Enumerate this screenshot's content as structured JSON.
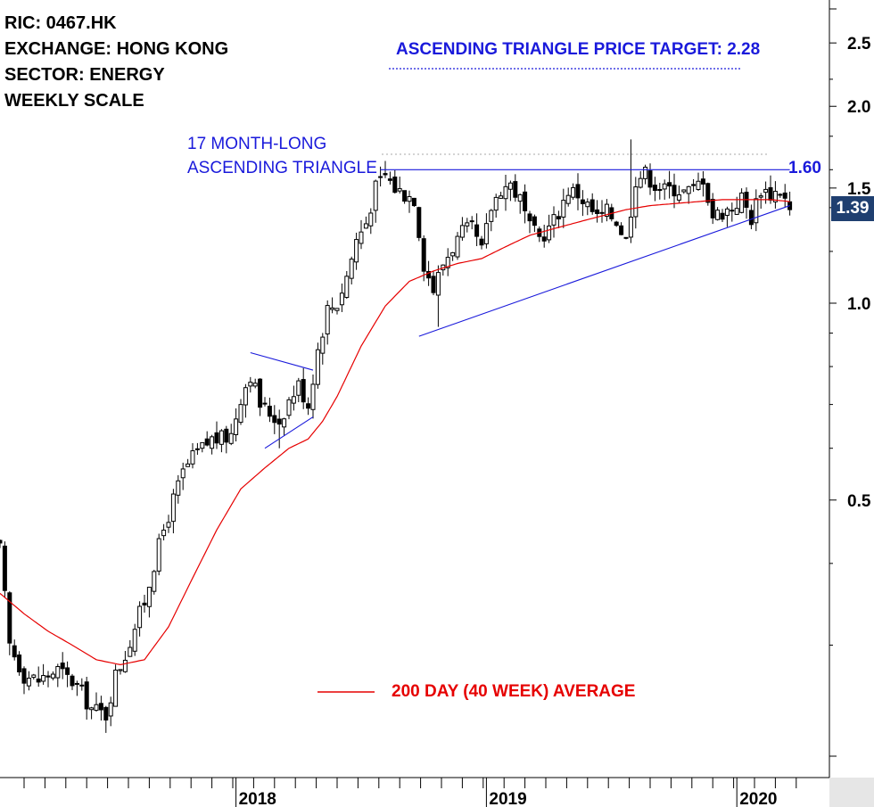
{
  "info": {
    "ric": "RIC: 0467.HK",
    "exchange": "EXCHANGE: HONG KONG",
    "sector": "SECTOR: ENERGY",
    "scale": "WEEKLY SCALE"
  },
  "annotations": {
    "target": "ASCENDING TRIANGLE PRICE TARGET: 2.28",
    "pattern_line1": "17 MONTH-LONG",
    "pattern_line2": "ASCENDING TRIANGLE",
    "resistance_label": "1.60",
    "last_price_label": "1.39",
    "legend_label": "200 DAY (40 WEEK) AVERAGE"
  },
  "colors": {
    "candle": "#000000",
    "moving_average": "#e60000",
    "trendline": "#1a1adb",
    "badge": "#1f3f70",
    "scale_panel": "#e6e6e6"
  },
  "chart_data": {
    "type": "candlestick",
    "scale": "log",
    "ylim": [
      0.21,
      2.8
    ],
    "y_ticks": [
      {
        "value": 0.5,
        "label": "0.5"
      },
      {
        "value": 1.0,
        "label": "1.0"
      },
      {
        "value": 1.5,
        "label": "1.5"
      },
      {
        "value": 2.0,
        "label": "2.0"
      },
      {
        "value": 2.5,
        "label": "2.5"
      }
    ],
    "x_labels": [
      {
        "week": 49,
        "label": "2018"
      },
      {
        "week": 101,
        "label": "2019"
      },
      {
        "week": 153,
        "label": "2020"
      }
    ],
    "weeks": 168,
    "resistance": 1.6,
    "last_close": 1.39,
    "price_target": 2.28,
    "trendlines": [
      {
        "name": "triangle support",
        "from": [
          87,
          0.89
        ],
        "to": [
          164,
          1.41
        ]
      },
      {
        "name": "triangle resistance",
        "from": [
          79,
          1.6
        ],
        "to": [
          164,
          1.6
        ]
      },
      {
        "name": "flag upper",
        "from": [
          52,
          0.84
        ],
        "to": [
          65,
          0.79
        ]
      },
      {
        "name": "flag lower",
        "from": [
          55,
          0.6
        ],
        "to": [
          65,
          0.67
        ]
      }
    ],
    "ma_path": [
      [
        0,
        0.36
      ],
      [
        5,
        0.335
      ],
      [
        10,
        0.315
      ],
      [
        15,
        0.3
      ],
      [
        20,
        0.285
      ],
      [
        25,
        0.28
      ],
      [
        30,
        0.285
      ],
      [
        35,
        0.32
      ],
      [
        40,
        0.38
      ],
      [
        45,
        0.45
      ],
      [
        50,
        0.52
      ],
      [
        55,
        0.56
      ],
      [
        60,
        0.6
      ],
      [
        64,
        0.62
      ],
      [
        67,
        0.66
      ],
      [
        70,
        0.72
      ],
      [
        75,
        0.86
      ],
      [
        80,
        0.99
      ],
      [
        85,
        1.08
      ],
      [
        90,
        1.12
      ],
      [
        95,
        1.15
      ],
      [
        100,
        1.17
      ],
      [
        105,
        1.22
      ],
      [
        110,
        1.27
      ],
      [
        115,
        1.3
      ],
      [
        120,
        1.33
      ],
      [
        125,
        1.36
      ],
      [
        130,
        1.39
      ],
      [
        135,
        1.41
      ],
      [
        140,
        1.42
      ],
      [
        145,
        1.43
      ],
      [
        150,
        1.44
      ],
      [
        155,
        1.44
      ],
      [
        160,
        1.44
      ],
      [
        164,
        1.43
      ]
    ],
    "close_path": [
      [
        0,
        0.42
      ],
      [
        2,
        0.3
      ],
      [
        5,
        0.27
      ],
      [
        8,
        0.265
      ],
      [
        12,
        0.275
      ],
      [
        16,
        0.26
      ],
      [
        19,
        0.24
      ],
      [
        22,
        0.235
      ],
      [
        24,
        0.27
      ],
      [
        26,
        0.29
      ],
      [
        28,
        0.32
      ],
      [
        30,
        0.35
      ],
      [
        32,
        0.4
      ],
      [
        34,
        0.45
      ],
      [
        36,
        0.5
      ],
      [
        38,
        0.55
      ],
      [
        40,
        0.58
      ],
      [
        42,
        0.6
      ],
      [
        44,
        0.62
      ],
      [
        46,
        0.62
      ],
      [
        48,
        0.63
      ],
      [
        50,
        0.72
      ],
      [
        52,
        0.78
      ],
      [
        54,
        0.7
      ],
      [
        56,
        0.68
      ],
      [
        58,
        0.66
      ],
      [
        60,
        0.71
      ],
      [
        62,
        0.75
      ],
      [
        64,
        0.7
      ],
      [
        66,
        0.85
      ],
      [
        68,
        0.98
      ],
      [
        70,
        1.0
      ],
      [
        72,
        1.1
      ],
      [
        74,
        1.25
      ],
      [
        76,
        1.33
      ],
      [
        78,
        1.5
      ],
      [
        80,
        1.57
      ],
      [
        82,
        1.5
      ],
      [
        84,
        1.47
      ],
      [
        86,
        1.45
      ],
      [
        88,
        1.15
      ],
      [
        90,
        1.05
      ],
      [
        92,
        1.15
      ],
      [
        94,
        1.22
      ],
      [
        96,
        1.28
      ],
      [
        98,
        1.3
      ],
      [
        100,
        1.2
      ],
      [
        102,
        1.4
      ],
      [
        104,
        1.5
      ],
      [
        106,
        1.52
      ],
      [
        108,
        1.44
      ],
      [
        110,
        1.3
      ],
      [
        112,
        1.26
      ],
      [
        114,
        1.3
      ],
      [
        116,
        1.38
      ],
      [
        118,
        1.49
      ],
      [
        120,
        1.47
      ],
      [
        122,
        1.41
      ],
      [
        124,
        1.35
      ],
      [
        126,
        1.38
      ],
      [
        128,
        1.34
      ],
      [
        130,
        1.25
      ],
      [
        132,
        1.55
      ],
      [
        134,
        1.58
      ],
      [
        136,
        1.52
      ],
      [
        138,
        1.49
      ],
      [
        140,
        1.5
      ],
      [
        142,
        1.48
      ],
      [
        144,
        1.49
      ],
      [
        146,
        1.56
      ],
      [
        148,
        1.36
      ],
      [
        150,
        1.38
      ],
      [
        152,
        1.4
      ],
      [
        154,
        1.45
      ],
      [
        156,
        1.35
      ],
      [
        158,
        1.5
      ],
      [
        160,
        1.47
      ],
      [
        162,
        1.49
      ],
      [
        164,
        1.39
      ]
    ]
  }
}
